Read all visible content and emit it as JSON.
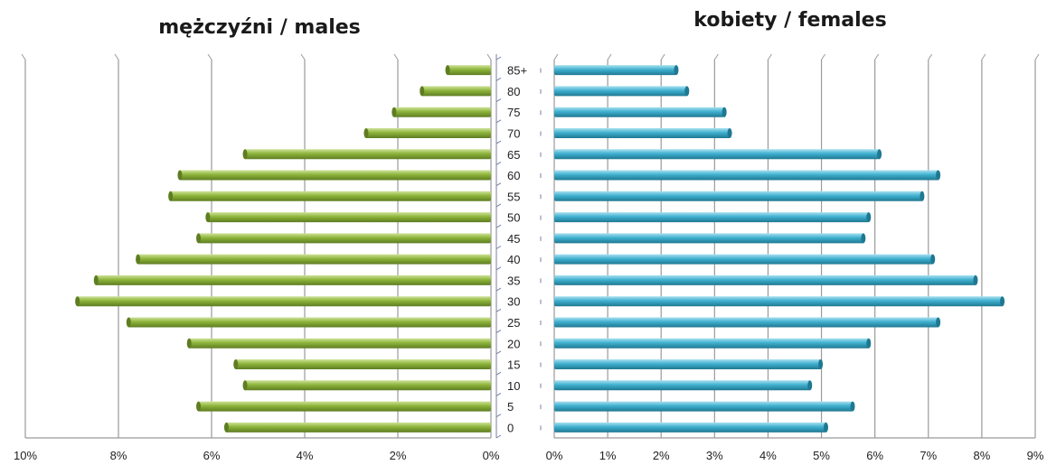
{
  "chart_data": [
    {
      "type": "bar",
      "orientation": "horizontal",
      "title": "mężczyźni / males",
      "categories": [
        "0",
        "5",
        "10",
        "15",
        "20",
        "25",
        "30",
        "35",
        "40",
        "45",
        "50",
        "55",
        "60",
        "65",
        "70",
        "75",
        "80",
        "85+"
      ],
      "values": [
        5.7,
        6.3,
        5.3,
        5.5,
        6.5,
        7.8,
        8.9,
        8.5,
        7.6,
        6.3,
        6.1,
        6.9,
        6.7,
        5.3,
        2.7,
        2.1,
        1.5,
        0.95
      ],
      "xlim": [
        0,
        10
      ],
      "xticks": [
        "10%",
        "8%",
        "6%",
        "4%",
        "2%",
        "0%"
      ],
      "grid": true,
      "color": "#8db43a"
    },
    {
      "type": "bar",
      "orientation": "horizontal",
      "title": "kobiety / females",
      "categories": [
        "0",
        "5",
        "10",
        "15",
        "20",
        "25",
        "30",
        "35",
        "40",
        "45",
        "50",
        "55",
        "60",
        "65",
        "70",
        "75",
        "80",
        "85+"
      ],
      "values": [
        5.1,
        5.6,
        4.8,
        5.0,
        5.9,
        7.2,
        8.4,
        7.9,
        7.1,
        5.8,
        5.9,
        6.9,
        7.2,
        6.1,
        3.3,
        3.2,
        2.5,
        2.3
      ],
      "xlim": [
        0,
        9
      ],
      "xticks": [
        "0%",
        "1%",
        "2%",
        "3%",
        "4%",
        "5%",
        "6%",
        "7%",
        "8%",
        "9%"
      ],
      "grid": true,
      "color": "#3fb0cf"
    }
  ],
  "colors": {
    "male_bar": "#8db43a",
    "male_bar_dark": "#5e7d22",
    "female_bar": "#3fb0cf",
    "female_bar_dark": "#1f7891",
    "grid": "#9a9a9a",
    "axis": "#7a7fa0"
  }
}
